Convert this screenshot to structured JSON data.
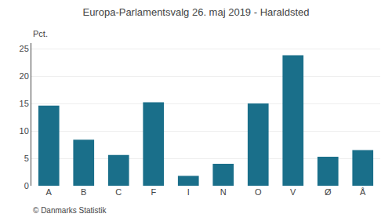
{
  "chart_data": {
    "type": "bar",
    "title": "Europa-Parlamentsvalg 26. maj 2019 - Haraldsted",
    "ylabel": "Pct.",
    "annotations": [
      "© Danmarks Statistik"
    ],
    "categories": [
      "A",
      "B",
      "C",
      "F",
      "I",
      "N",
      "O",
      "V",
      "Ø",
      "Å"
    ],
    "values": [
      14.6,
      8.4,
      5.6,
      15.2,
      1.8,
      4.0,
      15.0,
      23.8,
      5.3,
      6.5
    ],
    "color": "#1a6f8a",
    "ylim": [
      0,
      26
    ],
    "yticks": [
      0,
      5,
      10,
      15,
      20,
      25
    ],
    "grid": true
  }
}
